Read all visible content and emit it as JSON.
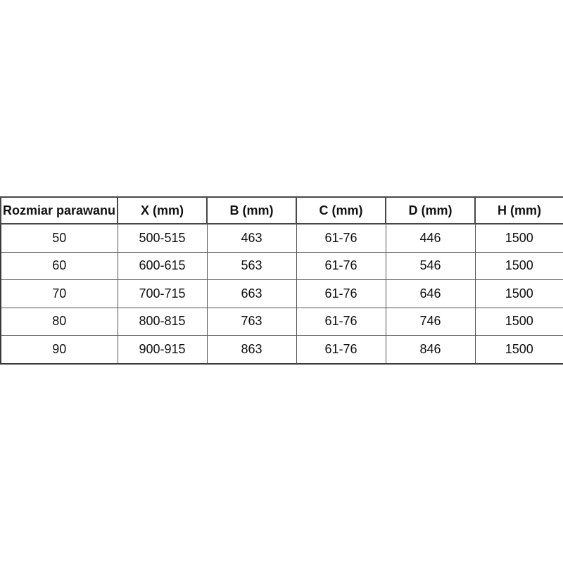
{
  "page": {
    "background_color": "#ffffff",
    "text_color": "#111111",
    "grid_line_color": "#555555",
    "outer_border_color": "#3a3a3a"
  },
  "chart_data": {
    "type": "table",
    "title": "",
    "columns": [
      "Rozmiar parawanu",
      "X (mm)",
      "B (mm)",
      "C (mm)",
      "D (mm)",
      "H (mm)"
    ],
    "rows": [
      [
        "50",
        "500-515",
        "463",
        "61-76",
        "446",
        "1500"
      ],
      [
        "60",
        "600-615",
        "563",
        "61-76",
        "546",
        "1500"
      ],
      [
        "70",
        "700-715",
        "663",
        "61-76",
        "646",
        "1500"
      ],
      [
        "80",
        "800-815",
        "763",
        "61-76",
        "746",
        "1500"
      ],
      [
        "90",
        "900-915",
        "863",
        "61-76",
        "846",
        "1500"
      ]
    ],
    "layout": {
      "header_bold": true,
      "cell_alignment": "center",
      "grid": true
    }
  }
}
